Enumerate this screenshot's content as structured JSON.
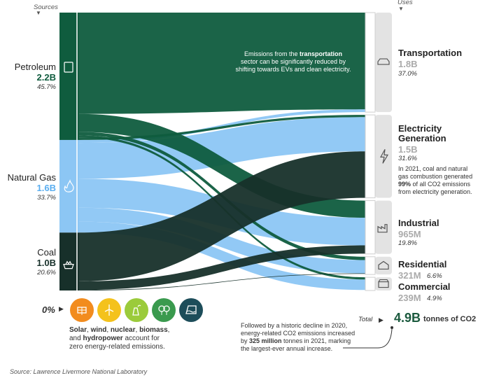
{
  "chart_data": {
    "type": "sankey",
    "headers": {
      "sources": "Sources",
      "uses": "Uses"
    },
    "sources": [
      {
        "name": "Petroleum",
        "value_label": "2.2B",
        "value": 2.2,
        "pct": "45.7%",
        "color": "#0f5c3e"
      },
      {
        "name": "Natural Gas",
        "value_label": "1.6B",
        "value": 1.6,
        "pct": "33.7%",
        "color": "#8cc6f4"
      },
      {
        "name": "Coal",
        "value_label": "1.0B",
        "value": 1.0,
        "pct": "20.6%",
        "color": "#17302a"
      }
    ],
    "uses": [
      {
        "name": "Transportation",
        "value_label": "1.8B",
        "value": 1.8,
        "pct": "37.0%"
      },
      {
        "name": "Electricity Generation",
        "value_label": "1.5B",
        "value": 1.5,
        "pct": "31.6%"
      },
      {
        "name": "Industrial",
        "value_label": "965M",
        "value": 0.965,
        "pct": "19.8%"
      },
      {
        "name": "Residential",
        "value_label": "321M",
        "value": 0.321,
        "pct": "6.6%"
      },
      {
        "name": "Commercial",
        "value_label": "239M",
        "value": 0.239,
        "pct": "4.9%"
      }
    ],
    "flows": [
      {
        "source": "Petroleum",
        "target": "Transportation",
        "value": 1.75
      },
      {
        "source": "Petroleum",
        "target": "Industrial",
        "value": 0.31
      },
      {
        "source": "Petroleum",
        "target": "Residential",
        "value": 0.06
      },
      {
        "source": "Petroleum",
        "target": "Commercial",
        "value": 0.04
      },
      {
        "source": "Petroleum",
        "target": "Electricity Generation",
        "value": 0.04
      },
      {
        "source": "Natural Gas",
        "target": "Transportation",
        "value": 0.05
      },
      {
        "source": "Natural Gas",
        "target": "Electricity Generation",
        "value": 0.62
      },
      {
        "source": "Natural Gas",
        "target": "Industrial",
        "value": 0.5
      },
      {
        "source": "Natural Gas",
        "target": "Residential",
        "value": 0.24
      },
      {
        "source": "Natural Gas",
        "target": "Commercial",
        "value": 0.19
      },
      {
        "source": "Coal",
        "target": "Electricity Generation",
        "value": 0.84
      },
      {
        "source": "Coal",
        "target": "Industrial",
        "value": 0.15
      },
      {
        "source": "Coal",
        "target": "Residential",
        "value": 0.01
      }
    ],
    "annotations": {
      "transportation": [
        [
          {
            "t": "Emissions from the "
          },
          {
            "t": "transportation",
            "b": true
          }
        ],
        [
          {
            "t": "sector can be significantly reduced by"
          }
        ],
        [
          {
            "t": "shifting towards EVs and clean electricity."
          }
        ]
      ],
      "electricity": [
        [
          {
            "t": "In 2021, coal and natural"
          }
        ],
        [
          {
            "t": "gas combustion generated"
          }
        ],
        [
          {
            "t": "99%",
            "b": true
          },
          {
            "t": " of all CO2 emissions"
          }
        ],
        [
          {
            "t": "from electricity generation."
          }
        ]
      ],
      "decline": [
        [
          {
            "t": "Followed by a historic decline in 2020,"
          }
        ],
        [
          {
            "t": "energy-related CO2 emissions increased"
          }
        ],
        [
          {
            "t": "by "
          },
          {
            "t": "325 million",
            "b": true
          },
          {
            "t": " tonnes in 2021, marking"
          }
        ],
        [
          {
            "t": "the largest-ever annual increase."
          }
        ]
      ],
      "zero_emission": [
        [
          {
            "t": "Solar",
            "b": true
          },
          {
            "t": ", "
          },
          {
            "t": "wind",
            "b": true
          },
          {
            "t": ", "
          },
          {
            "t": "nuclear",
            "b": true
          },
          {
            "t": ", "
          },
          {
            "t": "biomass",
            "b": true
          },
          {
            "t": ","
          }
        ],
        [
          {
            "t": "and "
          },
          {
            "t": "hydropower",
            "b": true
          },
          {
            "t": " account for"
          }
        ],
        [
          {
            "t": "zero energy-related emissions."
          }
        ]
      ]
    },
    "zero_label": "0%",
    "zero_icons": [
      {
        "name": "solar-icon",
        "color": "#f28c1e"
      },
      {
        "name": "wind-icon",
        "color": "#f4c21c"
      },
      {
        "name": "nuclear-icon",
        "color": "#9bcb3b"
      },
      {
        "name": "biomass-icon",
        "color": "#3a9a4e"
      },
      {
        "name": "hydropower-icon",
        "color": "#1d4d5a"
      }
    ],
    "total": {
      "label": "Total",
      "value": "4.9B",
      "unit": "tonnes of CO2"
    },
    "source_note": "Source: Lawrence Livermore National Laboratory"
  }
}
